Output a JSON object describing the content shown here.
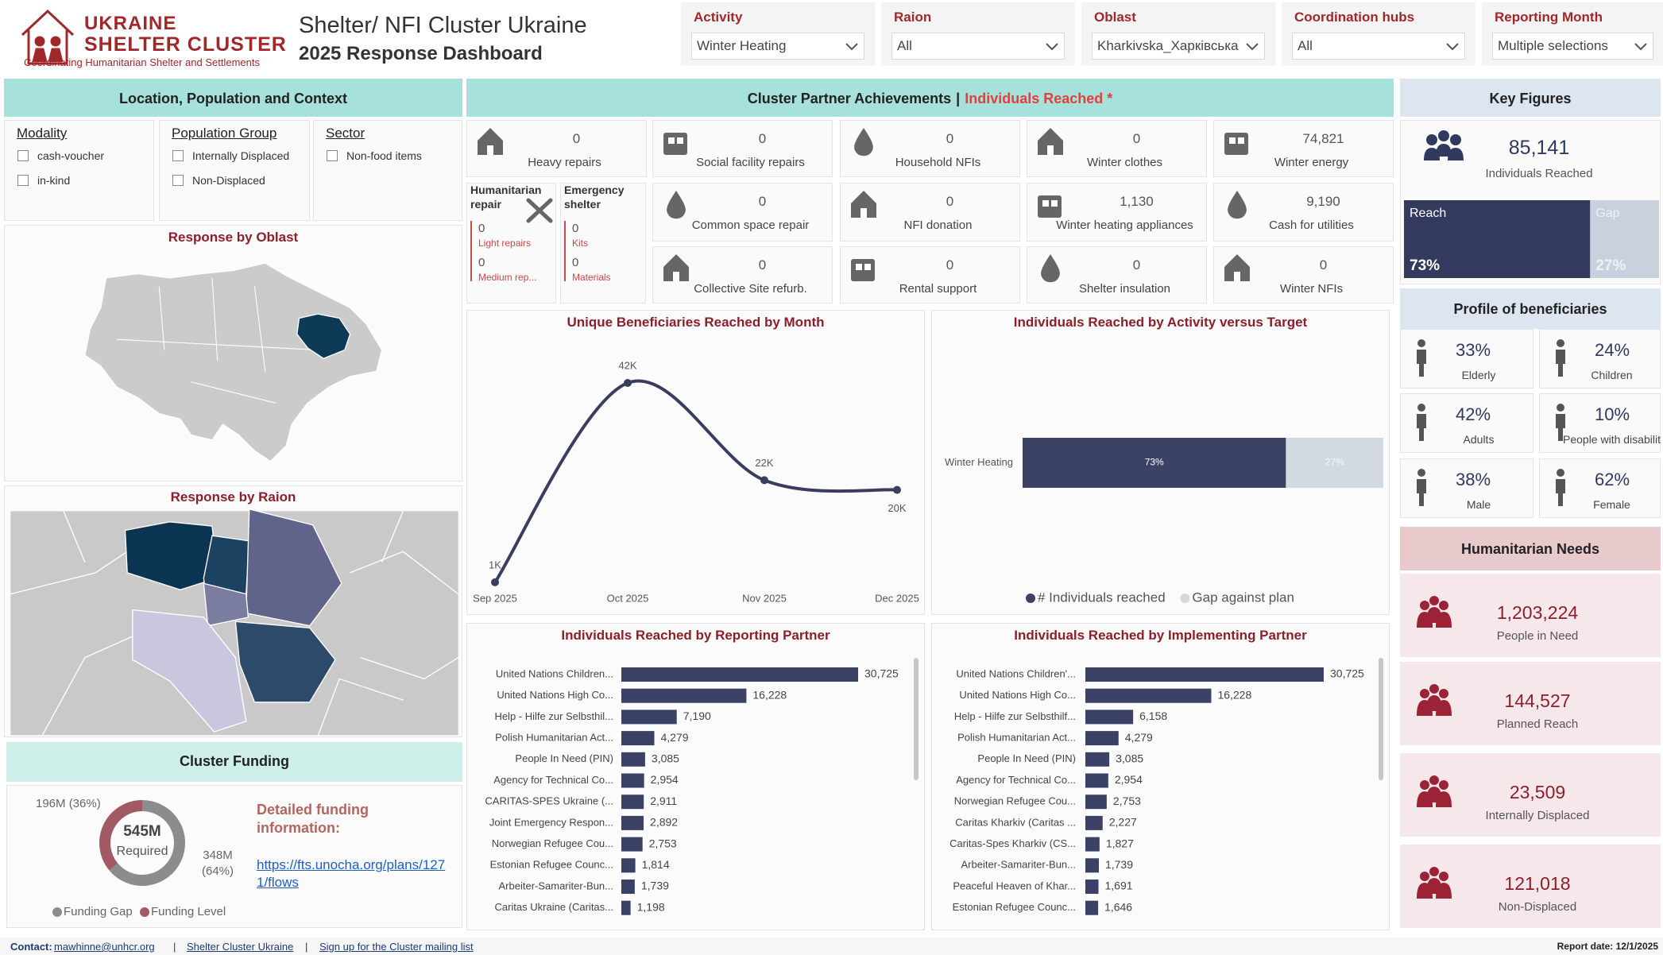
{
  "header": {
    "logo_line1": "UKRAINE",
    "logo_line2": "SHELTER CLUSTER",
    "logo_tagline": "Coordinating Humanitarian Shelter and Settlements",
    "title": "Shelter/ NFI Cluster Ukraine",
    "subtitle": "2025 Response Dashboard"
  },
  "filters": [
    {
      "label": "Activity",
      "value": "Winter Heating"
    },
    {
      "label": "Raion",
      "value": "All"
    },
    {
      "label": "Oblast",
      "value": "Kharkivska_Харківська"
    },
    {
      "label": "Coordination hubs",
      "value": "All"
    },
    {
      "label": "Reporting Month",
      "value": "Multiple selections"
    }
  ],
  "location": {
    "title": "Location, Population and Context",
    "slicers": [
      {
        "title": "Modality",
        "options": [
          "cash-voucher",
          "in-kind"
        ]
      },
      {
        "title": "Population Group",
        "options": [
          "Internally Displaced",
          "Non-Displaced"
        ]
      },
      {
        "title": "Sector",
        "options": [
          "Non-food items"
        ]
      }
    ],
    "oblast_map_title": "Response by Oblast",
    "raion_map_title": "Response by Raion"
  },
  "achievements": {
    "title": "Cluster Partner Achievements",
    "separator": "|",
    "metric": "Individuals Reached *",
    "tiles": [
      {
        "label": "Heavy repairs",
        "value": "0"
      },
      {
        "label": "Social facility repairs",
        "value": "0"
      },
      {
        "label": "Household NFIs",
        "value": "0"
      },
      {
        "label": "Winter clothes",
        "value": "0"
      },
      {
        "label": "Winter energy",
        "value": "74,821"
      },
      {
        "label": "Common space repair",
        "value": "0"
      },
      {
        "label": "NFI donation",
        "value": "0"
      },
      {
        "label": "Winter heating appliances",
        "value": "1,130"
      },
      {
        "label": "Cash for utilities",
        "value": "9,190"
      },
      {
        "label": "Collective Site refurb.",
        "value": "0"
      },
      {
        "label": "Rental support",
        "value": "0"
      },
      {
        "label": "Shelter insulation",
        "value": "0"
      },
      {
        "label": "Winter NFIs",
        "value": "0"
      }
    ],
    "groups": [
      {
        "title": "Humanitarian repair",
        "items": [
          {
            "label": "Light repairs",
            "value": "0"
          },
          {
            "label": "Medium rep...",
            "value": "0"
          }
        ]
      },
      {
        "title": "Emergency shelter",
        "items": [
          {
            "label": "Kits",
            "value": "0"
          },
          {
            "label": "Materials",
            "value": "0"
          }
        ]
      }
    ]
  },
  "chart_data": [
    {
      "type": "line",
      "title": "Unique Beneficiaries Reached by Month",
      "categories": [
        "Sep 2025",
        "Oct 2025",
        "Nov 2025",
        "Dec 2025"
      ],
      "values": [
        1000,
        42000,
        22000,
        20000
      ],
      "value_labels": [
        "1K",
        "42K",
        "22K",
        "20K"
      ],
      "color": "#3a3e5e"
    },
    {
      "type": "bar",
      "orientation": "horizontal",
      "stacked": true,
      "title": "Individuals Reached by Activity versus Target",
      "categories": [
        "Winter Heating"
      ],
      "series": [
        {
          "name": "# Individuals reached",
          "color": "#3b4266",
          "values": [
            73
          ],
          "value_labels": [
            "73%"
          ]
        },
        {
          "name": "Gap against plan",
          "color": "#d3d9e0",
          "values": [
            27
          ],
          "value_labels": [
            "27%"
          ]
        }
      ],
      "legend": "bottom"
    },
    {
      "type": "bar",
      "orientation": "horizontal",
      "title": "Individuals Reached by Reporting Partner",
      "color": "#3b4266",
      "categories": [
        "United Nations Children...",
        "United Nations High Co...",
        "Help - Hilfe zur Selbsthil...",
        "Polish Humanitarian Act...",
        "People In Need (PIN)",
        "Agency for Technical Co...",
        "CARITAS-SPES Ukraine (...",
        "Joint Emergency Respon...",
        "Norwegian Refugee Cou...",
        "Estonian Refugee Counc...",
        "Arbeiter-Samariter-Bun...",
        "Caritas Ukraine (Caritas..."
      ],
      "values": [
        30725,
        16228,
        7190,
        4279,
        3085,
        2954,
        2911,
        2892,
        2753,
        1814,
        1739,
        1198
      ],
      "value_labels": [
        "30,725",
        "16,228",
        "7,190",
        "4,279",
        "3,085",
        "2,954",
        "2,911",
        "2,892",
        "2,753",
        "1,814",
        "1,739",
        "1,198"
      ]
    },
    {
      "type": "bar",
      "orientation": "horizontal",
      "title": "Individuals Reached by Implementing Partner",
      "color": "#3b4266",
      "categories": [
        "United Nations Children'...",
        "United Nations High Co...",
        "Help - Hilfe zur Selbsthilf...",
        "Polish Humanitarian Act...",
        "People In Need (PIN)",
        "Agency for Technical Co...",
        "Norwegian Refugee Cou...",
        "Caritas Kharkiv (Caritas ...",
        "Caritas-Spes Kharkiv (CS...",
        "Arbeiter-Samariter-Bun...",
        "Peaceful Heaven of Khar...",
        "Estonian Refugee Counc..."
      ],
      "values": [
        30725,
        16228,
        6158,
        4279,
        3085,
        2954,
        2753,
        2227,
        1827,
        1739,
        1691,
        1646
      ],
      "value_labels": [
        "30,725",
        "16,228",
        "6,158",
        "4,279",
        "3,085",
        "2,954",
        "2,753",
        "2,227",
        "1,827",
        "1,739",
        "1,691",
        "1,646"
      ]
    },
    {
      "type": "pie",
      "donut": true,
      "title": "Cluster Funding",
      "categories": [
        "Funding Gap",
        "Funding Level"
      ],
      "values": [
        348,
        196
      ],
      "value_labels": [
        "348M (64%)",
        "196M (36%)"
      ],
      "colors": [
        "#8c8c8c",
        "#a15a63"
      ],
      "center_value": "545M",
      "center_label": "Required",
      "legend": "bottom"
    }
  ],
  "funding": {
    "info_title": "Detailed funding information:",
    "link": "https://fts.unocha.org/plans/1271/flows"
  },
  "key_figures": {
    "title": "Key Figures",
    "value": "85,141",
    "label": "Individuals Reached",
    "reach": {
      "name": "Reach",
      "value": 73,
      "label": "73%"
    },
    "gap": {
      "name": "Gap",
      "value": 27,
      "label": "27%"
    }
  },
  "profile": {
    "title": "Profile of beneficiaries",
    "items": [
      {
        "value": "33%",
        "label": "Elderly"
      },
      {
        "value": "24%",
        "label": "Children"
      },
      {
        "value": "42%",
        "label": "Adults"
      },
      {
        "value": "10%",
        "label": "People with disabiliti..."
      },
      {
        "value": "38%",
        "label": "Male"
      },
      {
        "value": "62%",
        "label": "Female"
      }
    ]
  },
  "needs": {
    "title": "Humanitarian Needs",
    "items": [
      {
        "value": "1,203,224",
        "label": "People in Need"
      },
      {
        "value": "144,527",
        "label": "Planned Reach"
      },
      {
        "value": "23,509",
        "label": "Internally Displaced"
      },
      {
        "value": "121,018",
        "label": "Non-Displaced"
      }
    ]
  },
  "footer": {
    "contact_label": "Contact:",
    "email": "mawhinne@unhcr.org",
    "separator": "|",
    "site": "Shelter Cluster Ukraine",
    "mailing": "Sign up for the Cluster mailing list",
    "report_date": "Report date: 12/1/2025"
  }
}
